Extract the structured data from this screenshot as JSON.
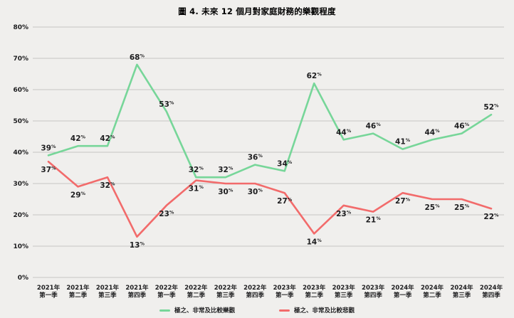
{
  "title": "圖 4. 未來 12 個月對家庭財務的樂觀程度",
  "colors": {
    "background": "#f0efed",
    "grid": "#c6c6c4",
    "text": "#1d1d1f",
    "optimistic": "#77d699",
    "pessimistic": "#f26b6b"
  },
  "chart_data": {
    "type": "line",
    "categories": [
      [
        "2021年",
        "第一季"
      ],
      [
        "2021年",
        "第二季"
      ],
      [
        "2021年",
        "第三季"
      ],
      [
        "2021年",
        "第四季"
      ],
      [
        "2022年",
        "第一季"
      ],
      [
        "2022年",
        "第二季"
      ],
      [
        "2022年",
        "第三季"
      ],
      [
        "2022年",
        "第四季"
      ],
      [
        "2023年",
        "第一季"
      ],
      [
        "2023年",
        "第二季"
      ],
      [
        "2023年",
        "第三季"
      ],
      [
        "2023年",
        "第四季"
      ],
      [
        "2024年",
        "第一季"
      ],
      [
        "2024年",
        "第二季"
      ],
      [
        "2024年",
        "第三季"
      ],
      [
        "2024年",
        "第四季"
      ]
    ],
    "series": [
      {
        "name": "極之、非常及比較樂觀",
        "color": "#77d699",
        "label_position": "above",
        "values": [
          39,
          42,
          42,
          68,
          53,
          32,
          32,
          36,
          34,
          62,
          44,
          46,
          41,
          44,
          46,
          52
        ]
      },
      {
        "name": "極之、非常及比較悲觀",
        "color": "#f26b6b",
        "label_position": "below",
        "values": [
          37,
          29,
          32,
          13,
          23,
          31,
          30,
          30,
          27,
          14,
          23,
          21,
          27,
          25,
          25,
          22
        ]
      }
    ],
    "ylim": [
      0,
      80
    ],
    "ytick_step": 10,
    "ytick_labels": [
      "0%",
      "10%",
      "20%",
      "30%",
      "40%",
      "50%",
      "60%",
      "70%",
      "80%"
    ],
    "value_suffix": "%",
    "grid": true,
    "legend_position": "bottom"
  }
}
